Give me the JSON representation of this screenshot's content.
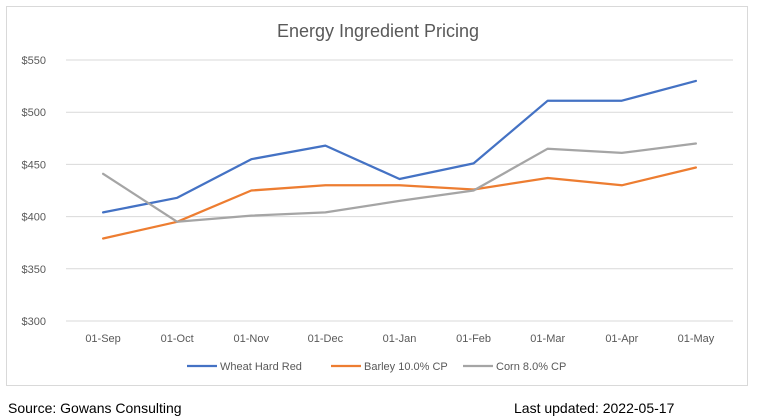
{
  "chart_data": {
    "type": "line",
    "title": "Energy Ingredient Pricing",
    "xlabel": "",
    "ylabel": "",
    "categories": [
      "01-Sep",
      "01-Oct",
      "01-Nov",
      "01-Dec",
      "01-Jan",
      "01-Feb",
      "01-Mar",
      "01-Apr",
      "01-May"
    ],
    "ylim": [
      300,
      550
    ],
    "yticks": [
      300,
      350,
      400,
      450,
      500,
      550
    ],
    "ytick_labels": [
      "$300",
      "$350",
      "$400",
      "$450",
      "$500",
      "$550"
    ],
    "grid": true,
    "legend_position": "bottom",
    "series": [
      {
        "name": "Wheat Hard Red",
        "color": "#4472c4",
        "values": [
          404,
          418,
          455,
          468,
          436,
          451,
          511,
          511,
          530
        ]
      },
      {
        "name": "Barley 10.0% CP",
        "color": "#ed7d31",
        "values": [
          379,
          395,
          425,
          430,
          430,
          426,
          437,
          430,
          447
        ]
      },
      {
        "name": "Corn 8.0% CP",
        "color": "#a5a5a5",
        "values": [
          441,
          395,
          401,
          404,
          415,
          425,
          465,
          461,
          470
        ]
      }
    ]
  },
  "footer": {
    "source": "Source: Gowans Consulting",
    "updated": "Last updated: 2022-05-17"
  }
}
